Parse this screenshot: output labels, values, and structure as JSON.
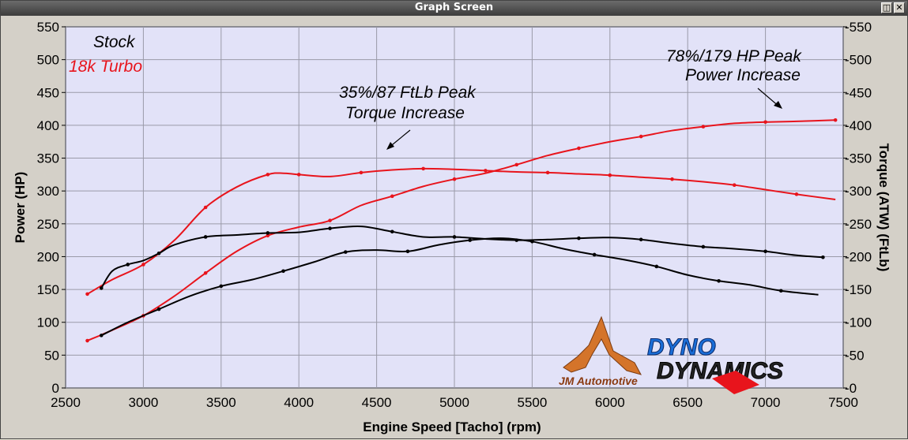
{
  "window": {
    "title": "Graph Screen",
    "restore_icon": "restore-icon",
    "close_icon": "close-icon"
  },
  "colors": {
    "plot_bg": "#e2e2f8",
    "grid": "#a0a0a0",
    "stock": "#000000",
    "turbo": "#e8141c",
    "frame": "#d4d0c8"
  },
  "legend": {
    "stock": "Stock",
    "turbo": "18k Turbo"
  },
  "annotations": {
    "torque_line1": "35%/87 FtLb Peak",
    "torque_line2": "Torque Increase",
    "power_line1": "78%/179 HP Peak",
    "power_line2": "Power Increase"
  },
  "logos": {
    "left_caption": "JM Automotive",
    "right_line1": "DYNO",
    "right_line2": "DYNAMICS"
  },
  "chart_data": {
    "type": "line",
    "xlabel": "Engine Speed [Tacho] (rpm)",
    "ylabel_left": "Power (HP)",
    "ylabel_right": "Torque (ATW) (FtLb)",
    "xlim": [
      2500,
      7500
    ],
    "ylim": [
      0,
      550
    ],
    "x_ticks": [
      "2500",
      "3000",
      "3500",
      "4000",
      "4500",
      "5000",
      "5500",
      "6000",
      "6500",
      "7000",
      "7500"
    ],
    "y_ticks": [
      "0",
      "50",
      "100",
      "150",
      "200",
      "250",
      "300",
      "350",
      "400",
      "450",
      "500",
      "550"
    ],
    "y2_ticks": [
      "0",
      "50",
      "100",
      "150",
      "200",
      "250",
      "300",
      "350",
      "400",
      "450",
      "500",
      "550"
    ],
    "grid": true,
    "series": [
      {
        "name": "18k Turbo",
        "quantity": "Power",
        "color": "#e8141c",
        "x": [
          2640,
          2800,
          3000,
          3200,
          3400,
          3600,
          3800,
          4000,
          4200,
          4400,
          4600,
          4800,
          5000,
          5200,
          5400,
          5600,
          5800,
          6000,
          6200,
          6400,
          6600,
          6800,
          7000,
          7200,
          7450
        ],
        "y": [
          72,
          88,
          110,
          140,
          175,
          208,
          232,
          245,
          255,
          278,
          292,
          307,
          318,
          327,
          340,
          354,
          365,
          375,
          383,
          392,
          398,
          403,
          405,
          406,
          408
        ]
      },
      {
        "name": "18k Turbo",
        "quantity": "Torque",
        "color": "#e8141c",
        "x": [
          2640,
          2800,
          3000,
          3200,
          3400,
          3600,
          3800,
          3900,
          4000,
          4200,
          4400,
          4600,
          4800,
          5000,
          5200,
          5400,
          5600,
          5800,
          6000,
          6200,
          6400,
          6600,
          6800,
          7000,
          7200,
          7450
        ],
        "y": [
          143,
          165,
          188,
          225,
          275,
          306,
          325,
          327,
          325,
          322,
          328,
          332,
          334,
          333,
          331,
          329,
          328,
          326,
          324,
          321,
          318,
          314,
          309,
          302,
          295,
          287
        ]
      },
      {
        "name": "Stock",
        "quantity": "Power",
        "color": "#000000",
        "x": [
          2730,
          2900,
          3100,
          3300,
          3500,
          3700,
          3900,
          4100,
          4300,
          4500,
          4700,
          4900,
          5100,
          5300,
          5500,
          5700,
          5900,
          6100,
          6300,
          6500,
          6700,
          6900,
          7100,
          7340
        ],
        "y": [
          80,
          100,
          120,
          140,
          155,
          165,
          178,
          192,
          207,
          210,
          208,
          218,
          225,
          228,
          223,
          212,
          203,
          195,
          185,
          172,
          163,
          157,
          148,
          142
        ]
      },
      {
        "name": "Stock",
        "quantity": "Torque",
        "color": "#000000",
        "x": [
          2730,
          2800,
          2900,
          3000,
          3100,
          3200,
          3400,
          3600,
          3800,
          4000,
          4200,
          4400,
          4600,
          4800,
          5000,
          5200,
          5400,
          5600,
          5800,
          6000,
          6200,
          6400,
          6600,
          6800,
          7000,
          7200,
          7370
        ],
        "y": [
          152,
          178,
          188,
          194,
          205,
          218,
          230,
          233,
          236,
          237,
          243,
          246,
          238,
          230,
          230,
          227,
          225,
          226,
          228,
          229,
          226,
          220,
          215,
          212,
          208,
          202,
          199
        ]
      }
    ]
  }
}
